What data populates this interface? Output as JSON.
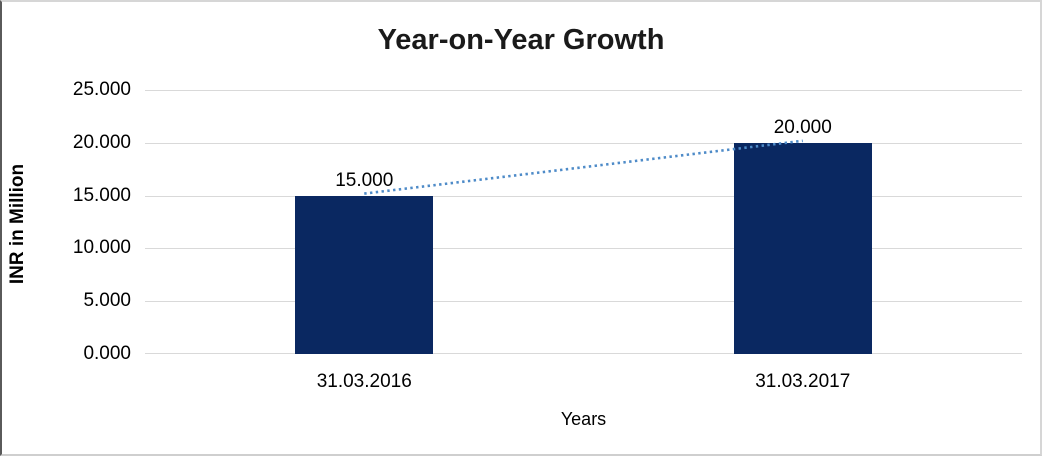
{
  "chart_data": {
    "type": "bar",
    "title": "Year-on-Year Growth",
    "xlabel": "Years",
    "ylabel": "INR in Million",
    "categories": [
      "31.03.2016",
      "31.03.2017"
    ],
    "values": [
      15000,
      20000
    ],
    "value_labels": [
      "15.000",
      "20.000"
    ],
    "ylim": [
      0,
      25000
    ],
    "ytick_values": [
      0,
      5000,
      10000,
      15000,
      20000,
      25000
    ],
    "ytick_labels": [
      "0.000",
      "5.000",
      "10.000",
      "15.000",
      "20.000",
      "25.000"
    ],
    "grid": true,
    "legend": "none",
    "bar_color": "#0a2861",
    "trendline": {
      "type": "linear",
      "style": "dotted",
      "color": "#4e8bc8"
    }
  }
}
